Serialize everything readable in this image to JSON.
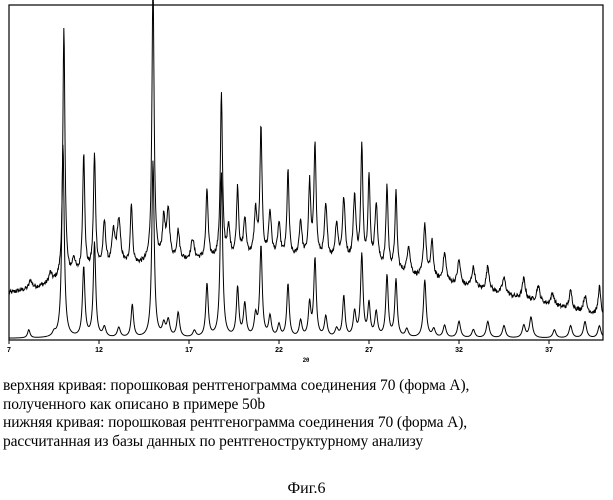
{
  "chart_data": {
    "type": "line",
    "xlabel": "2θ",
    "xlim": [
      7,
      40
    ],
    "x_ticks": [
      7,
      12,
      17,
      22,
      27,
      32,
      37
    ],
    "tick_labels": [
      "7",
      "12",
      "17",
      "22",
      "27",
      "32",
      "37"
    ],
    "grid": false,
    "legend": "none",
    "series": [
      {
        "line_color": "#000000",
        "baseline": 0.55,
        "background": [
          [
            7,
            0.55
          ],
          [
            9,
            0.64
          ],
          [
            12,
            0.82
          ],
          [
            16,
            0.93
          ],
          [
            20,
            0.97
          ],
          [
            24,
            0.95
          ],
          [
            27,
            0.87
          ],
          [
            30,
            0.72
          ],
          [
            34,
            0.55
          ],
          [
            37,
            0.4
          ],
          [
            40,
            0.27
          ]
        ],
        "noise": 0.028,
        "peaks": [
          [
            8.2,
            0.1,
            0.09
          ],
          [
            9.3,
            0.12,
            0.1
          ],
          [
            10.05,
            3.05,
            0.07
          ],
          [
            10.6,
            0.2,
            0.1
          ],
          [
            11.15,
            1.45,
            0.07
          ],
          [
            11.75,
            1.4,
            0.07
          ],
          [
            12.3,
            0.55,
            0.09
          ],
          [
            12.8,
            0.4,
            0.1
          ],
          [
            13.1,
            0.55,
            0.12
          ],
          [
            13.8,
            0.75,
            0.07
          ],
          [
            15.0,
            3.45,
            0.07
          ],
          [
            15.6,
            0.5,
            0.09
          ],
          [
            15.85,
            0.6,
            0.09
          ],
          [
            16.4,
            0.35,
            0.09
          ],
          [
            17.2,
            0.25,
            0.1
          ],
          [
            18.0,
            0.85,
            0.07
          ],
          [
            18.8,
            2.0,
            0.07
          ],
          [
            19.2,
            0.35,
            0.09
          ],
          [
            19.7,
            0.85,
            0.07
          ],
          [
            20.1,
            0.45,
            0.09
          ],
          [
            20.7,
            0.55,
            0.09
          ],
          [
            21.0,
            1.55,
            0.07
          ],
          [
            21.5,
            0.55,
            0.09
          ],
          [
            22.0,
            0.4,
            0.09
          ],
          [
            22.5,
            1.05,
            0.07
          ],
          [
            23.2,
            0.45,
            0.09
          ],
          [
            23.7,
            0.9,
            0.07
          ],
          [
            24.0,
            1.4,
            0.07
          ],
          [
            24.6,
            0.65,
            0.09
          ],
          [
            25.2,
            0.45,
            0.09
          ],
          [
            25.6,
            0.75,
            0.09
          ],
          [
            26.2,
            0.8,
            0.09
          ],
          [
            26.6,
            1.4,
            0.07
          ],
          [
            27.0,
            1.05,
            0.07
          ],
          [
            27.4,
            0.75,
            0.09
          ],
          [
            28.0,
            1.0,
            0.07
          ],
          [
            28.5,
            0.95,
            0.07
          ],
          [
            29.2,
            0.35,
            0.1
          ],
          [
            30.1,
            0.65,
            0.09
          ],
          [
            30.5,
            0.45,
            0.09
          ],
          [
            31.2,
            0.35,
            0.1
          ],
          [
            32.0,
            0.3,
            0.1
          ],
          [
            32.8,
            0.25,
            0.11
          ],
          [
            33.6,
            0.3,
            0.1
          ],
          [
            34.5,
            0.2,
            0.11
          ],
          [
            35.6,
            0.25,
            0.1
          ],
          [
            36.4,
            0.2,
            0.11
          ],
          [
            37.2,
            0.15,
            0.11
          ],
          [
            38.2,
            0.22,
            0.1
          ],
          [
            39.0,
            0.2,
            0.1
          ],
          [
            39.8,
            0.35,
            0.08
          ]
        ]
      },
      {
        "line_color": "#000000",
        "baseline": 0.0,
        "background": [
          [
            7,
            0.0
          ],
          [
            40,
            0.0
          ]
        ],
        "noise": 0.0,
        "peaks": [
          [
            8.1,
            0.1,
            0.08
          ],
          [
            9.5,
            0.05,
            0.1
          ],
          [
            10.0,
            2.35,
            0.08
          ],
          [
            11.15,
            0.85,
            0.08
          ],
          [
            11.75,
            1.15,
            0.08
          ],
          [
            12.3,
            0.12,
            0.1
          ],
          [
            13.1,
            0.12,
            0.1
          ],
          [
            13.85,
            0.4,
            0.08
          ],
          [
            15.0,
            2.15,
            0.08
          ],
          [
            15.6,
            0.15,
            0.1
          ],
          [
            15.85,
            0.2,
            0.1
          ],
          [
            16.4,
            0.3,
            0.09
          ],
          [
            17.3,
            0.08,
            0.1
          ],
          [
            18.0,
            0.65,
            0.08
          ],
          [
            18.8,
            2.0,
            0.08
          ],
          [
            19.7,
            0.6,
            0.08
          ],
          [
            20.1,
            0.4,
            0.09
          ],
          [
            20.7,
            0.25,
            0.09
          ],
          [
            21.0,
            1.1,
            0.08
          ],
          [
            21.5,
            0.25,
            0.09
          ],
          [
            22.0,
            0.15,
            0.09
          ],
          [
            22.5,
            0.65,
            0.08
          ],
          [
            23.2,
            0.2,
            0.09
          ],
          [
            23.7,
            0.4,
            0.08
          ],
          [
            24.0,
            0.95,
            0.08
          ],
          [
            24.6,
            0.25,
            0.09
          ],
          [
            25.2,
            0.1,
            0.1
          ],
          [
            25.6,
            0.5,
            0.08
          ],
          [
            26.2,
            0.3,
            0.09
          ],
          [
            26.6,
            1.0,
            0.08
          ],
          [
            27.0,
            0.4,
            0.08
          ],
          [
            27.4,
            0.3,
            0.09
          ],
          [
            28.0,
            0.75,
            0.08
          ],
          [
            28.5,
            0.7,
            0.08
          ],
          [
            29.1,
            0.1,
            0.1
          ],
          [
            30.1,
            0.7,
            0.09
          ],
          [
            30.6,
            0.1,
            0.1
          ],
          [
            31.2,
            0.15,
            0.1
          ],
          [
            32.0,
            0.2,
            0.1
          ],
          [
            32.8,
            0.1,
            0.1
          ],
          [
            33.6,
            0.2,
            0.1
          ],
          [
            34.5,
            0.15,
            0.1
          ],
          [
            35.6,
            0.15,
            0.1
          ],
          [
            36.0,
            0.25,
            0.1
          ],
          [
            37.3,
            0.1,
            0.1
          ],
          [
            38.2,
            0.15,
            0.1
          ],
          [
            39.0,
            0.2,
            0.1
          ],
          [
            39.8,
            0.15,
            0.1
          ]
        ]
      }
    ],
    "ylim": [
      -0.02,
      4.05
    ]
  },
  "caption": {
    "line1": "верхняя кривая: порошковая рентгенограмма соединения 70 (форма А),",
    "line2": "полученного как описано в примере 50b",
    "line3": "нижняя кривая: порошковая рентгенограмма соединения 70 (форма А),",
    "line4": "рассчитанная из базы данных по рентгеноструктурному анализу"
  },
  "figure_label": "Фиг.6"
}
